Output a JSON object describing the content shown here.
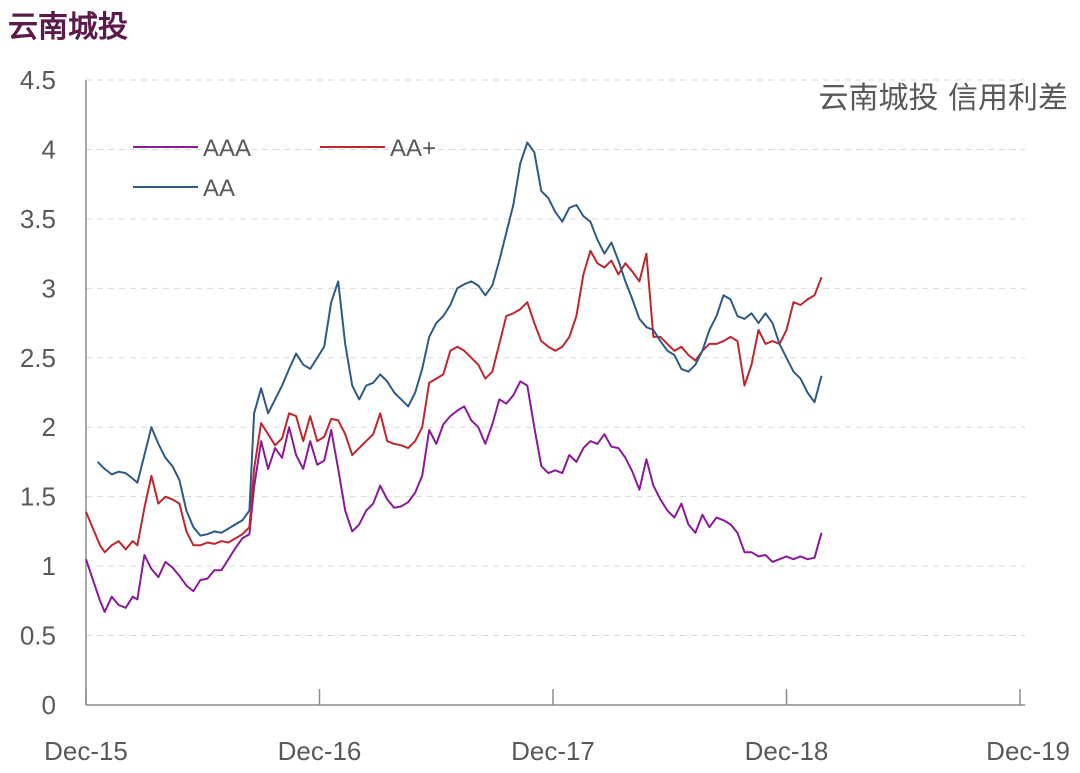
{
  "header": {
    "title": "云南城投"
  },
  "chart_data": {
    "type": "line",
    "title": "云南城投 信用利差",
    "xlabel": "",
    "ylabel": "",
    "ylim": [
      0,
      4.5
    ],
    "yticks": [
      "0",
      "0.5",
      "1",
      "1.5",
      "2",
      "2.5",
      "3",
      "3.5",
      "4",
      "4.5"
    ],
    "xticks": [
      "Dec-15",
      "Dec-16",
      "Dec-17",
      "Dec-18",
      "Dec-19"
    ],
    "x_range": [
      "2015-12",
      "2019-12"
    ],
    "grid": "horizontal dashed",
    "legend_position": "top-left",
    "series": [
      {
        "name": "AAA",
        "color": "#8b1a9a",
        "points": [
          [
            0.0,
            1.05
          ],
          [
            0.03,
            0.9
          ],
          [
            0.06,
            0.75
          ],
          [
            0.08,
            0.67
          ],
          [
            0.11,
            0.78
          ],
          [
            0.14,
            0.72
          ],
          [
            0.17,
            0.7
          ],
          [
            0.2,
            0.78
          ],
          [
            0.22,
            0.76
          ],
          [
            0.25,
            1.08
          ],
          [
            0.28,
            0.98
          ],
          [
            0.31,
            0.92
          ],
          [
            0.34,
            1.03
          ],
          [
            0.37,
            0.99
          ],
          [
            0.4,
            0.93
          ],
          [
            0.43,
            0.86
          ],
          [
            0.46,
            0.82
          ],
          [
            0.49,
            0.9
          ],
          [
            0.52,
            0.91
          ],
          [
            0.55,
            0.97
          ],
          [
            0.58,
            0.97
          ],
          [
            0.61,
            1.05
          ],
          [
            0.64,
            1.13
          ],
          [
            0.67,
            1.2
          ],
          [
            0.7,
            1.23
          ],
          [
            0.72,
            1.57
          ],
          [
            0.75,
            1.9
          ],
          [
            0.78,
            1.7
          ],
          [
            0.81,
            1.85
          ],
          [
            0.84,
            1.78
          ],
          [
            0.87,
            2.0
          ],
          [
            0.9,
            1.8
          ],
          [
            0.93,
            1.7
          ],
          [
            0.96,
            1.9
          ],
          [
            0.99,
            1.73
          ],
          [
            1.02,
            1.76
          ],
          [
            1.05,
            1.98
          ],
          [
            1.08,
            1.7
          ],
          [
            1.11,
            1.4
          ],
          [
            1.14,
            1.25
          ],
          [
            1.17,
            1.3
          ],
          [
            1.2,
            1.4
          ],
          [
            1.23,
            1.45
          ],
          [
            1.26,
            1.58
          ],
          [
            1.29,
            1.48
          ],
          [
            1.32,
            1.42
          ],
          [
            1.35,
            1.43
          ],
          [
            1.38,
            1.46
          ],
          [
            1.41,
            1.53
          ],
          [
            1.44,
            1.65
          ],
          [
            1.47,
            1.98
          ],
          [
            1.5,
            1.88
          ],
          [
            1.53,
            2.02
          ],
          [
            1.56,
            2.08
          ],
          [
            1.59,
            2.12
          ],
          [
            1.62,
            2.15
          ],
          [
            1.65,
            2.05
          ],
          [
            1.68,
            2.0
          ],
          [
            1.71,
            1.88
          ],
          [
            1.74,
            2.02
          ],
          [
            1.77,
            2.2
          ],
          [
            1.8,
            2.17
          ],
          [
            1.83,
            2.23
          ],
          [
            1.86,
            2.33
          ],
          [
            1.89,
            2.3
          ],
          [
            1.92,
            2.0
          ],
          [
            1.95,
            1.72
          ],
          [
            1.98,
            1.67
          ],
          [
            2.01,
            1.69
          ],
          [
            2.04,
            1.67
          ],
          [
            2.07,
            1.8
          ],
          [
            2.1,
            1.75
          ],
          [
            2.13,
            1.85
          ],
          [
            2.16,
            1.9
          ],
          [
            2.19,
            1.88
          ],
          [
            2.22,
            1.95
          ],
          [
            2.25,
            1.86
          ],
          [
            2.28,
            1.85
          ],
          [
            2.31,
            1.78
          ],
          [
            2.34,
            1.68
          ],
          [
            2.37,
            1.55
          ],
          [
            2.4,
            1.77
          ],
          [
            2.43,
            1.58
          ],
          [
            2.46,
            1.48
          ],
          [
            2.49,
            1.4
          ],
          [
            2.52,
            1.35
          ],
          [
            2.55,
            1.45
          ],
          [
            2.58,
            1.3
          ],
          [
            2.61,
            1.24
          ],
          [
            2.64,
            1.37
          ],
          [
            2.67,
            1.28
          ],
          [
            2.7,
            1.35
          ],
          [
            2.73,
            1.33
          ],
          [
            2.76,
            1.3
          ],
          [
            2.79,
            1.24
          ],
          [
            2.82,
            1.1
          ],
          [
            2.85,
            1.1
          ],
          [
            2.88,
            1.07
          ],
          [
            2.91,
            1.08
          ],
          [
            2.94,
            1.03
          ],
          [
            2.97,
            1.05
          ],
          [
            3.0,
            1.07
          ],
          [
            3.03,
            1.05
          ],
          [
            3.06,
            1.07
          ],
          [
            3.09,
            1.05
          ],
          [
            3.12,
            1.06
          ],
          [
            3.15,
            1.24
          ]
        ]
      },
      {
        "name": "AA+",
        "color": "#c0262d",
        "points": [
          [
            0.0,
            1.39
          ],
          [
            0.03,
            1.27
          ],
          [
            0.06,
            1.15
          ],
          [
            0.08,
            1.1
          ],
          [
            0.11,
            1.15
          ],
          [
            0.14,
            1.18
          ],
          [
            0.17,
            1.12
          ],
          [
            0.2,
            1.18
          ],
          [
            0.22,
            1.15
          ],
          [
            0.25,
            1.42
          ],
          [
            0.28,
            1.65
          ],
          [
            0.31,
            1.45
          ],
          [
            0.34,
            1.5
          ],
          [
            0.37,
            1.48
          ],
          [
            0.4,
            1.45
          ],
          [
            0.43,
            1.25
          ],
          [
            0.46,
            1.15
          ],
          [
            0.49,
            1.15
          ],
          [
            0.52,
            1.17
          ],
          [
            0.55,
            1.16
          ],
          [
            0.58,
            1.18
          ],
          [
            0.61,
            1.17
          ],
          [
            0.64,
            1.2
          ],
          [
            0.67,
            1.23
          ],
          [
            0.7,
            1.28
          ],
          [
            0.72,
            1.7
          ],
          [
            0.75,
            2.03
          ],
          [
            0.78,
            1.95
          ],
          [
            0.81,
            1.87
          ],
          [
            0.84,
            1.92
          ],
          [
            0.87,
            2.1
          ],
          [
            0.9,
            2.08
          ],
          [
            0.93,
            1.9
          ],
          [
            0.96,
            2.08
          ],
          [
            0.99,
            1.9
          ],
          [
            1.02,
            1.93
          ],
          [
            1.05,
            2.06
          ],
          [
            1.08,
            2.05
          ],
          [
            1.11,
            1.95
          ],
          [
            1.14,
            1.8
          ],
          [
            1.17,
            1.85
          ],
          [
            1.2,
            1.9
          ],
          [
            1.23,
            1.95
          ],
          [
            1.26,
            2.1
          ],
          [
            1.29,
            1.9
          ],
          [
            1.32,
            1.88
          ],
          [
            1.35,
            1.87
          ],
          [
            1.38,
            1.85
          ],
          [
            1.41,
            1.9
          ],
          [
            1.44,
            2.0
          ],
          [
            1.47,
            2.32
          ],
          [
            1.5,
            2.35
          ],
          [
            1.53,
            2.38
          ],
          [
            1.56,
            2.55
          ],
          [
            1.59,
            2.58
          ],
          [
            1.62,
            2.55
          ],
          [
            1.65,
            2.5
          ],
          [
            1.68,
            2.45
          ],
          [
            1.71,
            2.35
          ],
          [
            1.74,
            2.4
          ],
          [
            1.77,
            2.6
          ],
          [
            1.8,
            2.8
          ],
          [
            1.83,
            2.82
          ],
          [
            1.86,
            2.85
          ],
          [
            1.89,
            2.9
          ],
          [
            1.92,
            2.75
          ],
          [
            1.95,
            2.62
          ],
          [
            1.98,
            2.58
          ],
          [
            2.01,
            2.55
          ],
          [
            2.04,
            2.58
          ],
          [
            2.07,
            2.65
          ],
          [
            2.1,
            2.8
          ],
          [
            2.13,
            3.1
          ],
          [
            2.16,
            3.27
          ],
          [
            2.19,
            3.18
          ],
          [
            2.22,
            3.15
          ],
          [
            2.25,
            3.2
          ],
          [
            2.28,
            3.1
          ],
          [
            2.31,
            3.18
          ],
          [
            2.34,
            3.12
          ],
          [
            2.37,
            3.05
          ],
          [
            2.4,
            3.25
          ],
          [
            2.43,
            2.65
          ],
          [
            2.46,
            2.65
          ],
          [
            2.49,
            2.6
          ],
          [
            2.52,
            2.55
          ],
          [
            2.55,
            2.58
          ],
          [
            2.58,
            2.52
          ],
          [
            2.61,
            2.48
          ],
          [
            2.64,
            2.55
          ],
          [
            2.67,
            2.6
          ],
          [
            2.7,
            2.6
          ],
          [
            2.73,
            2.62
          ],
          [
            2.76,
            2.65
          ],
          [
            2.79,
            2.62
          ],
          [
            2.82,
            2.3
          ],
          [
            2.85,
            2.45
          ],
          [
            2.88,
            2.7
          ],
          [
            2.91,
            2.6
          ],
          [
            2.94,
            2.62
          ],
          [
            2.97,
            2.6
          ],
          [
            3.0,
            2.7
          ],
          [
            3.03,
            2.9
          ],
          [
            3.06,
            2.88
          ],
          [
            3.09,
            2.92
          ],
          [
            3.12,
            2.95
          ],
          [
            3.15,
            3.08
          ]
        ]
      },
      {
        "name": "AA",
        "color": "#2e5a88",
        "points": [
          [
            0.05,
            1.75
          ],
          [
            0.08,
            1.7
          ],
          [
            0.11,
            1.66
          ],
          [
            0.14,
            1.68
          ],
          [
            0.17,
            1.67
          ],
          [
            0.2,
            1.63
          ],
          [
            0.22,
            1.6
          ],
          [
            0.25,
            1.8
          ],
          [
            0.28,
            2.0
          ],
          [
            0.31,
            1.88
          ],
          [
            0.34,
            1.78
          ],
          [
            0.37,
            1.72
          ],
          [
            0.4,
            1.62
          ],
          [
            0.43,
            1.4
          ],
          [
            0.46,
            1.28
          ],
          [
            0.49,
            1.22
          ],
          [
            0.52,
            1.23
          ],
          [
            0.55,
            1.25
          ],
          [
            0.58,
            1.24
          ],
          [
            0.61,
            1.27
          ],
          [
            0.64,
            1.3
          ],
          [
            0.67,
            1.33
          ],
          [
            0.7,
            1.4
          ],
          [
            0.72,
            2.1
          ],
          [
            0.75,
            2.28
          ],
          [
            0.78,
            2.1
          ],
          [
            0.81,
            2.2
          ],
          [
            0.84,
            2.3
          ],
          [
            0.87,
            2.42
          ],
          [
            0.9,
            2.53
          ],
          [
            0.93,
            2.45
          ],
          [
            0.96,
            2.42
          ],
          [
            0.99,
            2.5
          ],
          [
            1.02,
            2.58
          ],
          [
            1.05,
            2.9
          ],
          [
            1.08,
            3.05
          ],
          [
            1.11,
            2.6
          ],
          [
            1.14,
            2.3
          ],
          [
            1.17,
            2.2
          ],
          [
            1.2,
            2.3
          ],
          [
            1.23,
            2.32
          ],
          [
            1.26,
            2.38
          ],
          [
            1.29,
            2.33
          ],
          [
            1.32,
            2.25
          ],
          [
            1.35,
            2.2
          ],
          [
            1.38,
            2.15
          ],
          [
            1.41,
            2.25
          ],
          [
            1.44,
            2.42
          ],
          [
            1.47,
            2.65
          ],
          [
            1.5,
            2.75
          ],
          [
            1.53,
            2.8
          ],
          [
            1.56,
            2.88
          ],
          [
            1.59,
            3.0
          ],
          [
            1.62,
            3.03
          ],
          [
            1.65,
            3.05
          ],
          [
            1.68,
            3.02
          ],
          [
            1.71,
            2.95
          ],
          [
            1.74,
            3.02
          ],
          [
            1.77,
            3.2
          ],
          [
            1.8,
            3.4
          ],
          [
            1.83,
            3.6
          ],
          [
            1.86,
            3.9
          ],
          [
            1.89,
            4.05
          ],
          [
            1.92,
            3.98
          ],
          [
            1.95,
            3.7
          ],
          [
            1.98,
            3.65
          ],
          [
            2.01,
            3.55
          ],
          [
            2.04,
            3.48
          ],
          [
            2.07,
            3.58
          ],
          [
            2.1,
            3.6
          ],
          [
            2.13,
            3.52
          ],
          [
            2.16,
            3.48
          ],
          [
            2.19,
            3.35
          ],
          [
            2.22,
            3.25
          ],
          [
            2.25,
            3.33
          ],
          [
            2.28,
            3.2
          ],
          [
            2.31,
            3.05
          ],
          [
            2.34,
            2.92
          ],
          [
            2.37,
            2.78
          ],
          [
            2.4,
            2.72
          ],
          [
            2.43,
            2.7
          ],
          [
            2.46,
            2.62
          ],
          [
            2.49,
            2.55
          ],
          [
            2.52,
            2.52
          ],
          [
            2.55,
            2.42
          ],
          [
            2.58,
            2.4
          ],
          [
            2.61,
            2.45
          ],
          [
            2.64,
            2.55
          ],
          [
            2.67,
            2.7
          ],
          [
            2.7,
            2.8
          ],
          [
            2.73,
            2.95
          ],
          [
            2.76,
            2.92
          ],
          [
            2.79,
            2.8
          ],
          [
            2.82,
            2.78
          ],
          [
            2.85,
            2.82
          ],
          [
            2.88,
            2.75
          ],
          [
            2.91,
            2.82
          ],
          [
            2.94,
            2.75
          ],
          [
            2.97,
            2.6
          ],
          [
            3.0,
            2.5
          ],
          [
            3.03,
            2.4
          ],
          [
            3.06,
            2.35
          ],
          [
            3.09,
            2.25
          ],
          [
            3.12,
            2.18
          ],
          [
            3.15,
            2.37
          ]
        ]
      }
    ]
  }
}
